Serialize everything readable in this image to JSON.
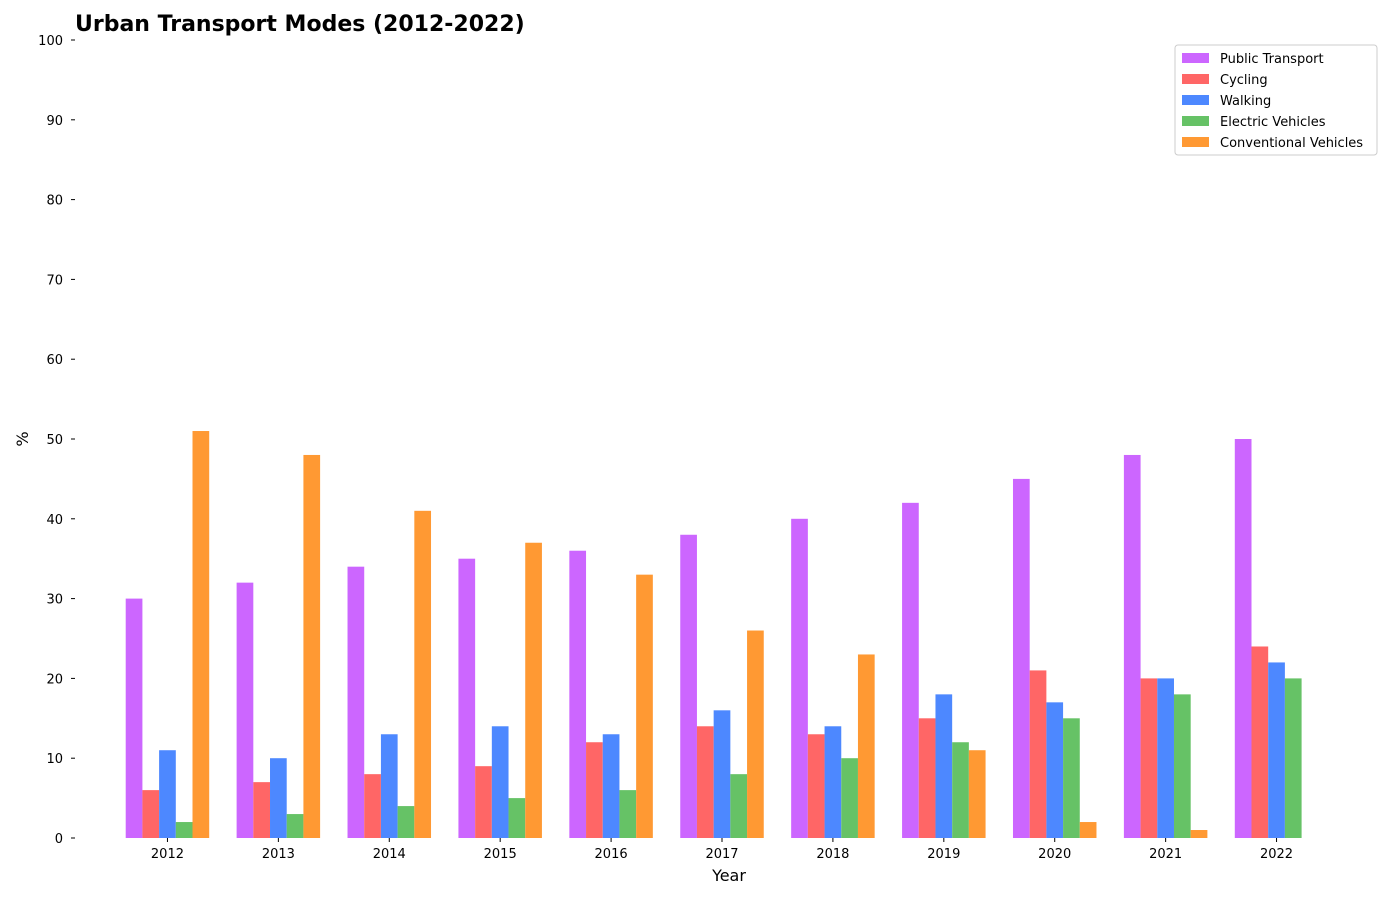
{
  "chart_data": {
    "type": "bar",
    "title": "Urban Transport Modes (2012-2022)",
    "xlabel": "Year",
    "ylabel": "%",
    "ylim": [
      0,
      100
    ],
    "yticks": [
      0,
      10,
      20,
      30,
      40,
      50,
      60,
      70,
      80,
      90,
      100
    ],
    "grid": false,
    "legend_position": "top-right",
    "categories": [
      "2012",
      "2013",
      "2014",
      "2015",
      "2016",
      "2017",
      "2018",
      "2019",
      "2020",
      "2021",
      "2022"
    ],
    "series": [
      {
        "name": "Public Transport",
        "color": "#cc66ff",
        "values": [
          30,
          32,
          34,
          35,
          36,
          38,
          40,
          42,
          45,
          48,
          50
        ]
      },
      {
        "name": "Cycling",
        "color": "#ff6666",
        "values": [
          6,
          7,
          8,
          9,
          12,
          14,
          13,
          15,
          21,
          20,
          24
        ]
      },
      {
        "name": "Walking",
        "color": "#4d88ff",
        "values": [
          11,
          10,
          13,
          14,
          13,
          16,
          14,
          18,
          17,
          20,
          22
        ]
      },
      {
        "name": "Electric Vehicles",
        "color": "#66c266",
        "values": [
          2,
          3,
          4,
          5,
          6,
          8,
          10,
          12,
          15,
          18,
          20
        ]
      },
      {
        "name": "Conventional Vehicles",
        "color": "#ff9933",
        "values": [
          51,
          48,
          41,
          37,
          33,
          26,
          23,
          11,
          2,
          1,
          0
        ]
      }
    ]
  }
}
